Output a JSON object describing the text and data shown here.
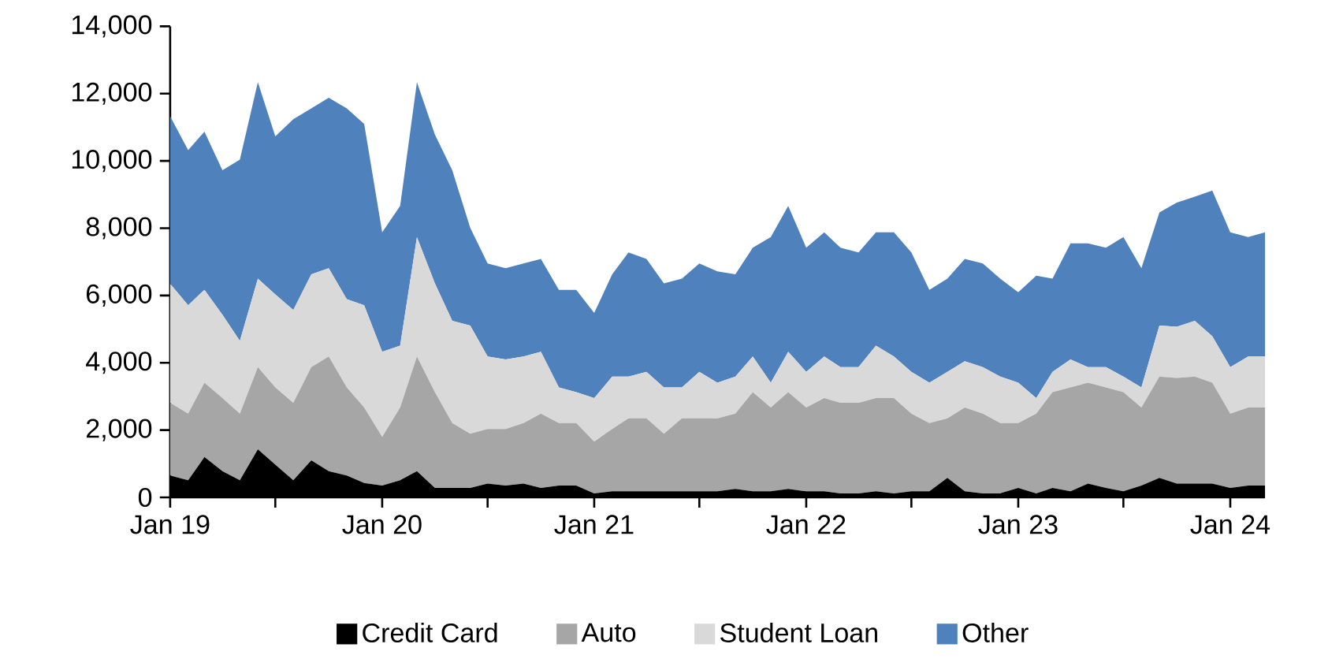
{
  "chart_data": {
    "type": "area",
    "stacked": true,
    "legend": "bottom",
    "x": [
      "2019-01",
      "2019-02",
      "2019-03",
      "2019-04",
      "2019-05",
      "2019-06",
      "2019-07",
      "2019-08",
      "2019-09",
      "2019-10",
      "2019-11",
      "2019-12",
      "2020-01",
      "2020-02",
      "2020-03",
      "2020-04",
      "2020-05",
      "2020-06",
      "2020-07",
      "2020-08",
      "2020-09",
      "2020-10",
      "2020-11",
      "2020-12",
      "2021-01",
      "2021-02",
      "2021-03",
      "2021-04",
      "2021-05",
      "2021-06",
      "2021-07",
      "2021-08",
      "2021-09",
      "2021-10",
      "2021-11",
      "2021-12",
      "2022-01",
      "2022-02",
      "2022-03",
      "2022-04",
      "2022-05",
      "2022-06",
      "2022-07",
      "2022-08",
      "2022-09",
      "2022-10",
      "2022-11",
      "2022-12",
      "2023-01",
      "2023-02",
      "2023-03",
      "2023-04",
      "2023-05",
      "2023-06",
      "2023-07",
      "2023-08",
      "2023-09",
      "2023-10",
      "2023-11",
      "2023-12",
      "2024-01",
      "2024-02",
      "2024-03"
    ],
    "xlim": [
      "2019-01",
      "2024-03"
    ],
    "xticks": [
      {
        "value": "2019-01",
        "label": "Jan 19"
      },
      {
        "value": "2019-07",
        "label": null
      },
      {
        "value": "2020-01",
        "label": "Jan 20"
      },
      {
        "value": "2020-07",
        "label": null
      },
      {
        "value": "2021-01",
        "label": "Jan 21"
      },
      {
        "value": "2021-07",
        "label": null
      },
      {
        "value": "2022-01",
        "label": "Jan 22"
      },
      {
        "value": "2022-07",
        "label": null
      },
      {
        "value": "2023-01",
        "label": "Jan 23"
      },
      {
        "value": "2023-07",
        "label": null
      },
      {
        "value": "2024-01",
        "label": "Jan 24"
      }
    ],
    "ylim": [
      0,
      14000
    ],
    "yticks": [
      0,
      {
        "value": 2000,
        "label": "2,000"
      },
      {
        "value": 4000,
        "label": "4,000"
      },
      {
        "value": 6000,
        "label": "6,000"
      },
      {
        "value": 8000,
        "label": "8,000"
      },
      {
        "value": 10000,
        "label": "10,000"
      },
      {
        "value": 12000,
        "label": "12,000"
      },
      {
        "value": 14000,
        "label": "14,000"
      }
    ],
    "series": [
      {
        "name": "Credit Card",
        "color": "#000000",
        "values": [
          650,
          510,
          1200,
          780,
          510,
          1430,
          970,
          510,
          1100,
          780,
          650,
          430,
          350,
          510,
          780,
          280,
          280,
          280,
          410,
          350,
          410,
          280,
          350,
          350,
          120,
          180,
          180,
          180,
          180,
          180,
          180,
          180,
          250,
          180,
          180,
          250,
          180,
          180,
          120,
          120,
          180,
          120,
          180,
          180,
          580,
          180,
          120,
          120,
          280,
          120,
          280,
          180,
          410,
          280,
          180,
          350,
          580,
          410,
          410,
          410,
          280,
          350,
          350
        ]
      },
      {
        "name": "Auto",
        "color": "#a6a6a6",
        "values": [
          2160,
          1980,
          2210,
          2170,
          1980,
          2440,
          2300,
          2300,
          2770,
          3410,
          2620,
          2240,
          1450,
          2160,
          3410,
          2850,
          1930,
          1610,
          1620,
          1680,
          1800,
          2210,
          1860,
          1860,
          1540,
          1850,
          2170,
          2170,
          1710,
          2170,
          2170,
          2170,
          2240,
          2950,
          2490,
          2880,
          2490,
          2770,
          2690,
          2690,
          2770,
          2830,
          2310,
          2030,
          1770,
          2490,
          2370,
          2090,
          1930,
          2370,
          2850,
          3090,
          3000,
          2990,
          2950,
          2320,
          3010,
          3140,
          3180,
          3000,
          2210,
          2320,
          2320
        ]
      },
      {
        "name": "Student Loan",
        "color": "#d9d9d9",
        "values": [
          3540,
          3220,
          2760,
          2480,
          2160,
          2630,
          2760,
          2760,
          2760,
          2620,
          2620,
          3040,
          2530,
          1840,
          3550,
          3230,
          3040,
          3220,
          2160,
          2070,
          1980,
          1840,
          1060,
          920,
          1290,
          1560,
          1240,
          1380,
          1380,
          920,
          1380,
          1060,
          1100,
          1060,
          740,
          1200,
          1060,
          1240,
          1060,
          1060,
          1560,
          1240,
          1240,
          1200,
          1380,
          1380,
          1380,
          1380,
          1200,
          460,
          600,
          830,
          460,
          600,
          460,
          600,
          1520,
          1520,
          1660,
          1380,
          1380,
          1520,
          1520
        ]
      },
      {
        "name": "Other",
        "color": "#4f81bd",
        "values": [
          4980,
          4610,
          4700,
          4290,
          5390,
          5840,
          4700,
          5670,
          4930,
          5070,
          5670,
          5390,
          3550,
          4150,
          4600,
          4420,
          4470,
          2900,
          2760,
          2710,
          2760,
          2760,
          2900,
          3040,
          2530,
          3040,
          3690,
          3360,
          3090,
          3230,
          3220,
          3310,
          3040,
          3230,
          4330,
          4330,
          3690,
          3690,
          3550,
          3410,
          3370,
          3690,
          3550,
          2760,
          2770,
          3040,
          3080,
          2910,
          2690,
          3640,
          2770,
          3450,
          3680,
          3550,
          4150,
          3540,
          3360,
          3690,
          3690,
          4330,
          4010,
          3550,
          3690
        ]
      }
    ]
  }
}
